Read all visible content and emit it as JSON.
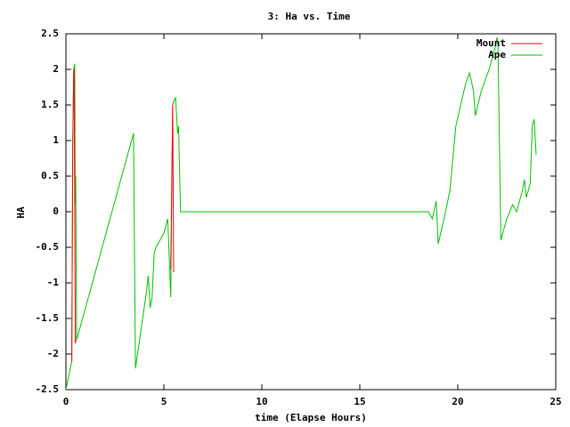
{
  "chart_data": {
    "type": "line",
    "title": "3: Ha vs. Time",
    "x_label": "time (Elapse Hours)",
    "y_label": "HA",
    "xlim": [
      0,
      25
    ],
    "xticks": [
      0,
      5,
      10,
      15,
      20,
      25
    ],
    "ylim": [
      -2.5,
      2.5
    ],
    "yticks": [
      -2.5,
      -2,
      -1.5,
      -1,
      -0.5,
      0,
      0.5,
      1,
      1.5,
      2,
      2.5
    ],
    "legend": "top-right",
    "series": [
      {
        "name": "Mount",
        "color": "#ff0000",
        "x": [
          0.3,
          0.35,
          0.4,
          0.42,
          0.48,
          0.52,
          5.3,
          5.35,
          5.45,
          5.5
        ],
        "values": [
          -2.1,
          1.0,
          2.0,
          2.0,
          -1.85,
          -1.8,
          null,
          -0.8,
          1.5,
          -0.85
        ]
      },
      {
        "name": "Ape",
        "color": "#00c000",
        "x": [
          0,
          0.3,
          0.35,
          0.4,
          0.45,
          0.48,
          0.5,
          0.55,
          3.45,
          3.55,
          4.1,
          4.2,
          4.3,
          4.4,
          4.5,
          4.6,
          4.8,
          5.0,
          5.2,
          5.35,
          5.45,
          5.5,
          5.6,
          5.7,
          5.75,
          5.85,
          18.5,
          18.7,
          18.9,
          19.0,
          19.3,
          19.6,
          19.9,
          20.4,
          20.6,
          20.8,
          20.9,
          21.2,
          21.6,
          21.9,
          22.0,
          22.05,
          22.2,
          22.5,
          22.8,
          23.0,
          23.3,
          23.4,
          23.5,
          23.7,
          23.8,
          23.9,
          24.0
        ],
        "values": [
          -2.5,
          -2.1,
          0.9,
          2.0,
          2.08,
          0.1,
          0.5,
          -1.8,
          1.1,
          -2.2,
          -1.15,
          -0.9,
          -1.35,
          -1.2,
          -0.6,
          -0.5,
          -0.4,
          -0.3,
          -0.1,
          -1.2,
          1.5,
          1.55,
          1.6,
          1.1,
          1.2,
          0,
          0,
          -0.1,
          0.15,
          -0.45,
          -0.1,
          0.3,
          1.2,
          1.8,
          1.95,
          1.7,
          1.35,
          1.7,
          2.0,
          2.3,
          2.45,
          2.35,
          -0.4,
          -0.1,
          0.1,
          0,
          0.3,
          0.45,
          0.2,
          0.4,
          1.2,
          1.3,
          0.8
        ]
      }
    ]
  }
}
